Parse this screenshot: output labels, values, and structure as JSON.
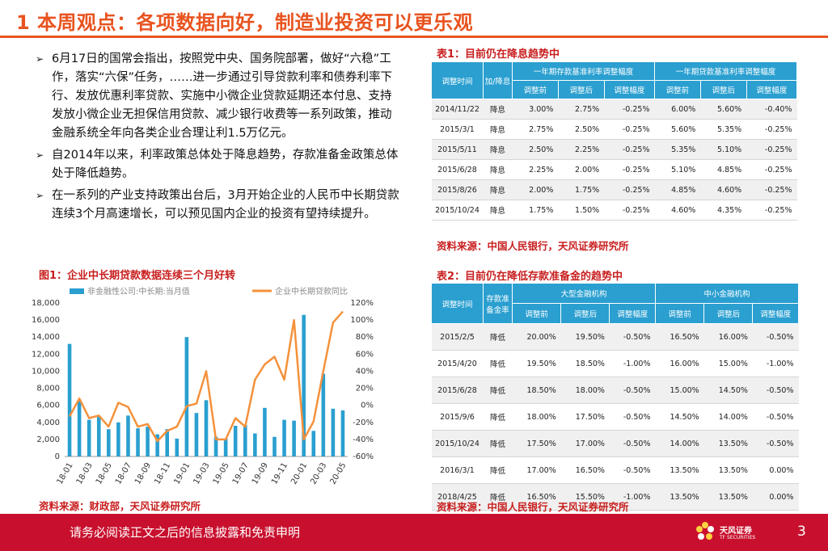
{
  "page": {
    "title": "1  本周观点：各项数据向好，制造业投资可以更乐观",
    "page_number": "3"
  },
  "bullets": [
    "6月17日的国常会指出，按照党中央、国务院部署，做好“六稳”工作，落实“六保”任务，……进一步通过引导贷款利率和债券利率下行、发放优惠利率贷款、实施中小微企业贷款延期还本付息、支持发放小微企业无担保信用贷款、减少银行收费等一系列政策，推动金融系统全年向各类企业合理让利1.5万亿元。",
    "自2014年以来，利率政策总体处于降息趋势，存款准备金政策总体处于降低趋势。",
    "在一系列的产业支持政策出台后，3月开始企业的人民币中长期贷款连续3个月高速增长，可以预见国内企业的投资有望持续提升。"
  ],
  "bullet_mark": "➢",
  "figure1": {
    "label": "图1：企业中长期贷款数据连续三个月好转",
    "source": "资料来源：财政部，天风证券研究所"
  },
  "table1": {
    "label": "表1：目前仍在降息趋势中",
    "source": "资料来源：中国人民银行，天风证券研究所",
    "headers": {
      "time": "调整时间",
      "direction": "加/降息",
      "group1": "一年期存款基准利率调整幅度",
      "group2": "一年期贷款基准利率调整幅度",
      "before": "调整前",
      "after": "调整后",
      "change": "调整幅度"
    },
    "rows": [
      [
        "2014/11/22",
        "降息",
        "3.00%",
        "2.75%",
        "-0.25%",
        "6.00%",
        "5.60%",
        "-0.40%"
      ],
      [
        "2015/3/1",
        "降息",
        "2.75%",
        "2.50%",
        "-0.25%",
        "5.60%",
        "5.35%",
        "-0.25%"
      ],
      [
        "2015/5/11",
        "降息",
        "2.50%",
        "2.25%",
        "-0.25%",
        "5.35%",
        "5.10%",
        "-0.25%"
      ],
      [
        "2015/6/28",
        "降息",
        "2.25%",
        "2.00%",
        "-0.25%",
        "5.10%",
        "4.85%",
        "-0.25%"
      ],
      [
        "2015/8/26",
        "降息",
        "2.00%",
        "1.75%",
        "-0.25%",
        "4.85%",
        "4.60%",
        "-0.25%"
      ],
      [
        "2015/10/24",
        "降息",
        "1.75%",
        "1.50%",
        "-0.25%",
        "4.60%",
        "4.35%",
        "-0.25%"
      ]
    ]
  },
  "table2": {
    "label": "表2：目前仍在降低存款准备金的趋势中",
    "source": "资料来源：中国人民银行，天风证券研究所",
    "headers": {
      "time": "调整时间",
      "direction": "存款准备金率",
      "group1": "大型金融机构",
      "group2": "中小金融机构",
      "before": "调整前",
      "after": "调整后",
      "change": "调整幅度"
    },
    "rows": [
      [
        "2015/2/5",
        "降低",
        "20.00%",
        "19.50%",
        "-0.50%",
        "16.50%",
        "16.00%",
        "-0.50%"
      ],
      [
        "2015/4/20",
        "降低",
        "19.50%",
        "18.50%",
        "-1.00%",
        "16.00%",
        "15.00%",
        "-1.00%"
      ],
      [
        "2015/6/28",
        "降低",
        "18.50%",
        "18.00%",
        "-0.50%",
        "15.00%",
        "14.50%",
        "-0.50%"
      ],
      [
        "2015/9/6",
        "降低",
        "18.00%",
        "17.50%",
        "-0.50%",
        "14.50%",
        "14.00%",
        "-0.50%"
      ],
      [
        "2015/10/24",
        "降低",
        "17.50%",
        "17.00%",
        "-0.50%",
        "14.00%",
        "13.50%",
        "-0.50%"
      ],
      [
        "2016/3/1",
        "降低",
        "17.00%",
        "16.50%",
        "-0.50%",
        "13.50%",
        "13.50%",
        "0.00%"
      ],
      [
        "2018/4/25",
        "降低",
        "16.50%",
        "15.50%",
        "-1.00%",
        "13.50%",
        "13.50%",
        "0.00%"
      ]
    ]
  },
  "footer": {
    "disclaimer": "请务必阅读正文之后的信息披露和免责申明",
    "logo_name": "天风证券",
    "logo_sub": "TF SECURITIES"
  },
  "colors": {
    "title": "#e8531f",
    "label": "#c81e1e",
    "bar": "#2a9fd0",
    "line": "#f5913b",
    "footer": "#c8102e",
    "table_header": "#2a9fd0"
  },
  "chart_data": {
    "type": "bar+line",
    "title": "",
    "x": [
      "18-01",
      "18-02",
      "18-03",
      "18-04",
      "18-05",
      "18-06",
      "18-07",
      "18-08",
      "18-09",
      "18-10",
      "18-11",
      "18-12",
      "19-01",
      "19-02",
      "19-03",
      "19-04",
      "19-05",
      "19-06",
      "19-07",
      "19-08",
      "19-09",
      "19-10",
      "19-11",
      "19-12",
      "20-01",
      "20-02",
      "20-03",
      "20-04",
      "20-05"
    ],
    "x_tick_labels": [
      "18-01",
      "18-03",
      "18-05",
      "18-07",
      "18-09",
      "18-11",
      "19-01",
      "19-03",
      "19-05",
      "19-07",
      "19-09",
      "19-11",
      "20-01",
      "20-03",
      "20-05"
    ],
    "series": [
      {
        "name": "非金融性公司:中长期:当月值",
        "type": "bar",
        "axis": "left",
        "values": [
          13200,
          6600,
          4300,
          4700,
          3200,
          4000,
          4800,
          3300,
          3500,
          2600,
          3200,
          2100,
          14000,
          5100,
          6600,
          2300,
          2100,
          3600,
          3700,
          2700,
          5700,
          2300,
          4300,
          4200,
          16600,
          3000,
          9700,
          5600,
          5400
        ]
      },
      {
        "name": "企业中长期贷款同比",
        "type": "line",
        "axis": "right",
        "values": [
          -13,
          8,
          -15,
          -12,
          -25,
          3,
          -2,
          -25,
          -22,
          -42,
          -30,
          -25,
          -1,
          2,
          40,
          -40,
          -40,
          -15,
          -25,
          30,
          48,
          57,
          30,
          100,
          -40,
          -19,
          40,
          97,
          110
        ]
      }
    ],
    "y_left": {
      "range": [
        0,
        18000
      ],
      "ticks": [
        "0",
        "2,000",
        "4,000",
        "6,000",
        "8,000",
        "10,000",
        "12,000",
        "14,000",
        "16,000",
        "18,000"
      ]
    },
    "y_right": {
      "range": [
        -60,
        120
      ],
      "ticks": [
        "-60%",
        "-40%",
        "-20%",
        "0%",
        "20%",
        "40%",
        "60%",
        "80%",
        "100%",
        "120%"
      ]
    },
    "legend_position": "top"
  }
}
